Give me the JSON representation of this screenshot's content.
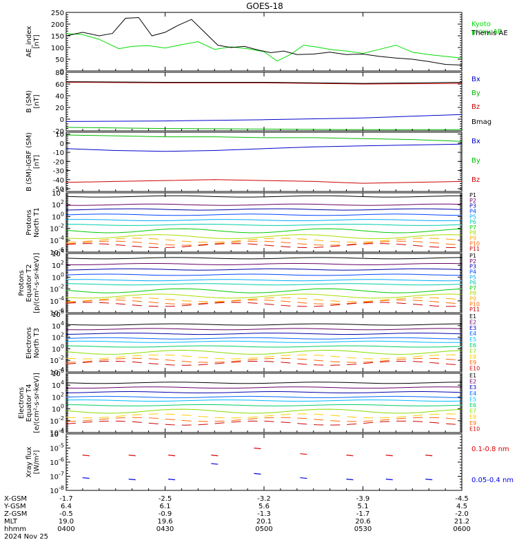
{
  "title": "GOES-18",
  "time_axis": {
    "rows": [
      {
        "label": "X-GSM",
        "values": [
          "-1.7",
          "-2.5",
          "-3.2",
          "-3.9",
          "-4.5"
        ]
      },
      {
        "label": "Y-GSM",
        "values": [
          "6.4",
          "6.1",
          "5.6",
          "5.1",
          "4.5"
        ]
      },
      {
        "label": "Z-GSM",
        "values": [
          "-0.5",
          "-0.9",
          "-1.3",
          "-1.7",
          "-2.0"
        ]
      },
      {
        "label": "MLT",
        "values": [
          "19.0",
          "19.6",
          "20.1",
          "20.6",
          "21.2"
        ]
      },
      {
        "label": "hhmm",
        "values": [
          "0400",
          "0430",
          "0500",
          "0530",
          "0600"
        ]
      }
    ],
    "date": "2024 Nov 25"
  },
  "chart_data": [
    {
      "type": "line",
      "ylabel": "AE_index\n[nT]",
      "ylim": [
        0,
        250
      ],
      "yticks": [
        "0",
        "50",
        "100",
        "150",
        "200",
        "250"
      ],
      "xlim": [
        0,
        120
      ],
      "series": [
        {
          "name": "Kyoto\nproxy AE",
          "color": "#00dd00",
          "x": [
            0,
            5,
            10,
            16,
            20,
            25,
            30,
            35,
            40,
            45,
            50,
            55,
            60,
            64,
            68,
            72,
            76,
            80,
            85,
            90,
            95,
            100,
            105,
            110,
            115,
            120
          ],
          "values": [
            160,
            155,
            135,
            95,
            105,
            108,
            98,
            112,
            125,
            92,
            103,
            95,
            82,
            42,
            70,
            110,
            102,
            92,
            85,
            75,
            92,
            110,
            80,
            70,
            62,
            55
          ]
        },
        {
          "name": "Themis AE",
          "color": "#000000",
          "x": [
            0,
            5,
            10,
            14,
            18,
            22,
            26,
            30,
            34,
            38,
            42,
            46,
            50,
            54,
            58,
            62,
            66,
            70,
            75,
            80,
            85,
            90,
            95,
            100,
            105,
            110,
            115,
            120
          ],
          "values": [
            150,
            165,
            150,
            160,
            225,
            228,
            150,
            165,
            195,
            220,
            165,
            110,
            100,
            105,
            90,
            78,
            85,
            70,
            72,
            80,
            70,
            72,
            62,
            55,
            50,
            40,
            28,
            25
          ]
        }
      ]
    },
    {
      "type": "line",
      "ylabel": "B (SM)\n[nT]",
      "ylim": [
        -20,
        80
      ],
      "yticks": [
        "-20",
        "0",
        "20",
        "40",
        "60",
        "80"
      ],
      "xlim": [
        0,
        120
      ],
      "series": [
        {
          "name": "Bx",
          "color": "#0000cc",
          "x": [
            0,
            30,
            60,
            90,
            120
          ],
          "values": [
            -4,
            -3,
            -1,
            2,
            8
          ]
        },
        {
          "name": "By",
          "color": "#00bb00",
          "x": [
            0,
            30,
            60,
            90,
            120
          ],
          "values": [
            -14,
            -16,
            -17,
            -18,
            -18
          ]
        },
        {
          "name": "Bz",
          "color": "#cc0000",
          "x": [
            0,
            30,
            60,
            90,
            120
          ],
          "values": [
            63,
            62,
            62,
            60,
            61
          ]
        },
        {
          "name": "Bmag",
          "color": "#000000",
          "x": [
            0,
            30,
            60,
            90,
            120
          ],
          "values": [
            64,
            63,
            63,
            61,
            63
          ]
        }
      ]
    },
    {
      "type": "line",
      "ylabel": "B (SM)-IGRF (SM)\n[nT]",
      "ylim": [
        -53,
        12
      ],
      "yticks": [
        "-50",
        "-40",
        "-30",
        "-20",
        "-10",
        "0",
        "10"
      ],
      "xlim": [
        0,
        120
      ],
      "series": [
        {
          "name": "Bx",
          "color": "#0000cc",
          "x": [
            0,
            15,
            30,
            45,
            60,
            75,
            90,
            105,
            120
          ],
          "values": [
            -6,
            -8,
            -9,
            -8,
            -6,
            -4,
            -3,
            -2,
            -1
          ]
        },
        {
          "name": "By",
          "color": "#00bb00",
          "x": [
            0,
            15,
            30,
            45,
            60,
            75,
            90,
            105,
            120
          ],
          "values": [
            9,
            8,
            7,
            7,
            6,
            6,
            5,
            4,
            2
          ]
        },
        {
          "name": "Bz",
          "color": "#cc0000",
          "x": [
            0,
            15,
            30,
            45,
            60,
            75,
            90,
            105,
            120
          ],
          "values": [
            -43,
            -42,
            -41,
            -40,
            -41,
            -42,
            -44,
            -43,
            -42
          ]
        }
      ]
    },
    {
      "type": "line",
      "ylabel": "Protons\nNorth T1",
      "log_scale": true,
      "ylim_exponent": [
        -6,
        4
      ],
      "yticks": [
        "10^-6",
        "10^-4",
        "10^-2",
        "10^0",
        "10^2",
        "10^4"
      ],
      "xlim": [
        0,
        120
      ],
      "channels": [
        "P1",
        "P2",
        "P3",
        "P4",
        "P5",
        "P6",
        "P7",
        "P8",
        "P9",
        "P10",
        "P11"
      ],
      "channel_colors": [
        "#000000",
        "#660066",
        "#0000aa",
        "#0044ff",
        "#00aaff",
        "#00ccaa",
        "#00cc00",
        "#aadd00",
        "#ffaa00",
        "#ff6600",
        "#cc0000"
      ],
      "channel_log_values": [
        3.4,
        2.0,
        1.2,
        0.3,
        -0.6,
        -1.4,
        -2.4,
        -3.4,
        -4.0,
        -4.5,
        -4.9
      ]
    },
    {
      "type": "line",
      "ylabel": "Protons\nEquator T2\n[p/(cm²-s-sr-keV)]",
      "log_scale": true,
      "ylim_exponent": [
        -6,
        4
      ],
      "yticks": [
        "10^-6",
        "10^-4",
        "10^-2",
        "10^0",
        "10^2",
        "10^4"
      ],
      "xlim": [
        0,
        120
      ],
      "channels": [
        "P1",
        "P2",
        "P3",
        "P4",
        "P5",
        "P6",
        "P7",
        "P8",
        "P9",
        "P10",
        "P11"
      ],
      "channel_colors": [
        "#000000",
        "#660066",
        "#0000aa",
        "#0044ff",
        "#00aaff",
        "#00ccaa",
        "#00cc00",
        "#aadd00",
        "#ffaa00",
        "#ff6600",
        "#cc0000"
      ],
      "channel_log_values": [
        3.2,
        2.2,
        1.3,
        0.4,
        -0.5,
        -1.2,
        -2.3,
        -3.2,
        -3.8,
        -4.2,
        -4.6
      ]
    },
    {
      "type": "line",
      "ylabel": "Electrons\nNorth T3",
      "log_scale": true,
      "ylim_exponent": [
        -4,
        6
      ],
      "yticks": [
        "10^-4",
        "10^-2",
        "10^0",
        "10^2",
        "10^4",
        "10^6"
      ],
      "xlim": [
        0,
        120
      ],
      "channels": [
        "E1",
        "E2",
        "E3",
        "E4",
        "E5",
        "E6",
        "E7",
        "E8",
        "E9",
        "E10"
      ],
      "channel_colors": [
        "#000000",
        "#660066",
        "#0000aa",
        "#0066ff",
        "#00bbff",
        "#00cc66",
        "#88dd00",
        "#ffcc00",
        "#ff6600",
        "#cc0000"
      ],
      "channel_log_values": [
        4.2,
        3.4,
        2.6,
        1.8,
        1.2,
        0.4,
        -0.6,
        -1.4,
        -2.0,
        -2.5
      ]
    },
    {
      "type": "line",
      "ylabel": "Electrons\nEquator T4\n[e/(cm²-s-sr-keV)]",
      "log_scale": true,
      "ylim_exponent": [
        -4,
        6
      ],
      "yticks": [
        "10^-4",
        "10^-2",
        "10^0",
        "10^2",
        "10^4",
        "10^6"
      ],
      "xlim": [
        0,
        120
      ],
      "channels": [
        "E1",
        "E2",
        "E3",
        "E4",
        "E5",
        "E6",
        "E7",
        "E8",
        "E9",
        "E10"
      ],
      "channel_colors": [
        "#000000",
        "#660066",
        "#0000aa",
        "#0066ff",
        "#00bbff",
        "#00cc66",
        "#88dd00",
        "#ffcc00",
        "#ff6600",
        "#cc0000"
      ],
      "channel_log_values": [
        4.4,
        3.6,
        2.8,
        2.0,
        1.4,
        0.6,
        -0.4,
        -1.2,
        -1.8,
        -2.4
      ]
    },
    {
      "type": "scatter",
      "ylabel": "Xray flux\n[W/m²]",
      "log_scale": true,
      "ylim_exponent": [
        -8,
        -4
      ],
      "yticks": [
        "10^-8",
        "10^-7",
        "10^-6",
        "10^-5",
        "10^-4"
      ],
      "xlim": [
        0,
        120
      ],
      "series": [
        {
          "name": "0.1-0.8 nm",
          "color": "#dd0000",
          "x": [
            6,
            20,
            32,
            45,
            58,
            72,
            86,
            98,
            110
          ],
          "log_values": [
            -5.5,
            -5.5,
            -5.5,
            -5.5,
            -5.0,
            -5.4,
            -5.5,
            -5.5,
            -5.5
          ]
        },
        {
          "name": "0.05-0.4 nm",
          "color": "#0000dd",
          "x": [
            6,
            20,
            32,
            45,
            58,
            72,
            86,
            98,
            110
          ],
          "log_values": [
            -7.1,
            -7.2,
            -7.2,
            -6.1,
            -6.8,
            -7.1,
            -7.2,
            -7.2,
            -7.2
          ]
        }
      ]
    }
  ]
}
